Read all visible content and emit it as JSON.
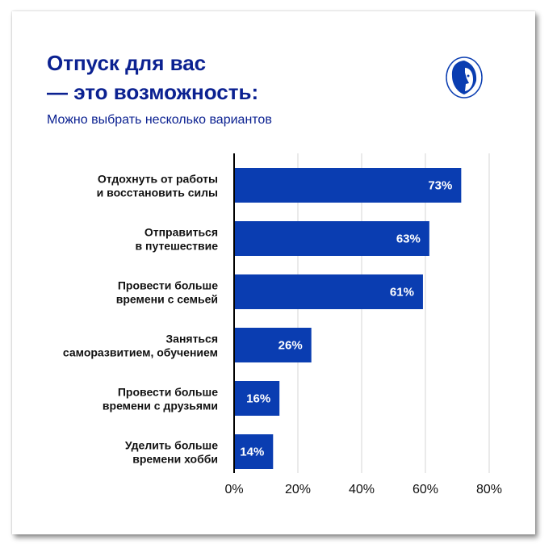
{
  "chart_data": {
    "type": "bar",
    "orientation": "horizontal",
    "title": "Отпуск для вас — это возможность:",
    "title_lines": [
      "Отпуск для вас",
      "— это возможность:"
    ],
    "subtitle": "Можно выбрать несколько вариантов",
    "categories": [
      [
        "Отдохнуть от работы",
        "и восстановить силы"
      ],
      [
        "Отправиться",
        "в путешествие"
      ],
      [
        "Провести больше",
        "времени с семьей"
      ],
      [
        "Заняться",
        "саморазвитием, обучением"
      ],
      [
        "Провести больше",
        "времени с друзьями"
      ],
      [
        "Уделить больше",
        "времени хобби"
      ]
    ],
    "values": [
      73,
      63,
      61,
      26,
      16,
      14
    ],
    "data_labels": [
      "73%",
      "63%",
      "61%",
      "26%",
      "16%",
      "14%"
    ],
    "xlim": [
      0,
      80
    ],
    "xticks": [
      "0%",
      "20%",
      "40%",
      "60%",
      "80%"
    ],
    "grid": true,
    "bar_color": "#0a3db1",
    "title_color": "#0b2191"
  },
  "logo": {
    "icon": "lion-head-logo"
  }
}
